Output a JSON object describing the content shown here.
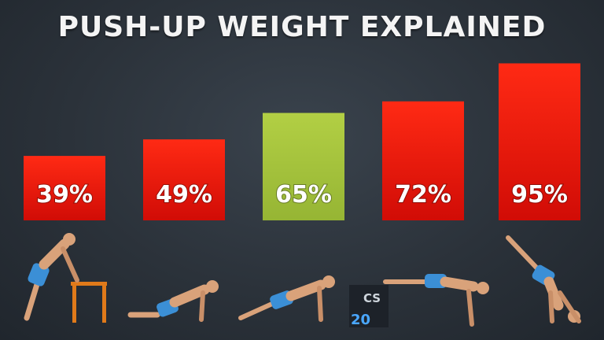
{
  "title": "PUSH-UP WEIGHT EXPLAINED",
  "chart_data": {
    "type": "bar",
    "title": "PUSH-UP WEIGHT EXPLAINED",
    "categories": [
      "",
      "",
      "",
      "",
      ""
    ],
    "values": [
      39,
      49,
      65,
      72,
      95
    ],
    "labels": [
      "39%",
      "49%",
      "65%",
      "72%",
      "95%"
    ],
    "colors": [
      "#e8180c",
      "#e8180c",
      "#a6c43c",
      "#e8180c",
      "#e8180c"
    ],
    "ylim": [
      0,
      100
    ],
    "grid": false,
    "legend": "none"
  },
  "figures": [
    {
      "icon": "incline-pushup-figure-icon"
    },
    {
      "icon": "knee-pushup-figure-icon"
    },
    {
      "icon": "standard-pushup-figure-icon"
    },
    {
      "icon": "decline-pushup-figure-icon"
    },
    {
      "icon": "handstand-pushup-figure-icon"
    }
  ],
  "box_label": "CS\n20"
}
